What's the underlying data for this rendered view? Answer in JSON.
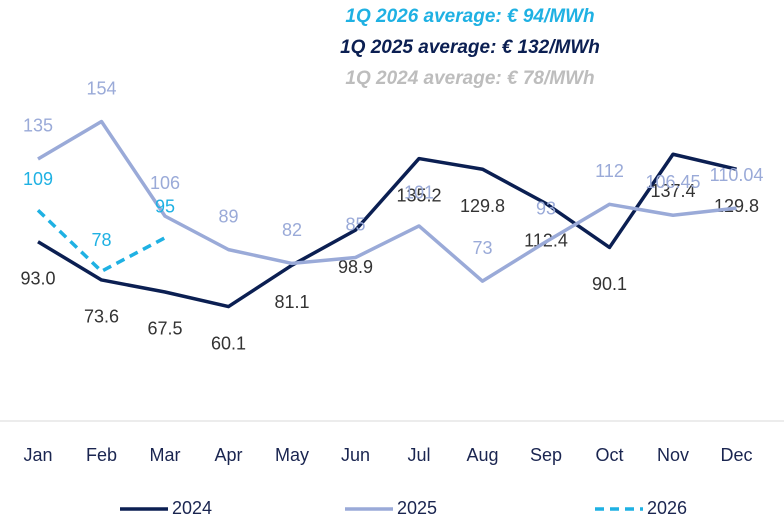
{
  "chart_data": {
    "type": "line",
    "annotations": [
      {
        "text": "1Q 2026 average: € 94/MWh",
        "color": "#1fb1e3"
      },
      {
        "text": "1Q 2025 average: € 132/MWh",
        "color": "#0b1f52"
      },
      {
        "text": "1Q 2024 average: € 78/MWh",
        "color": "#bdbdbd"
      }
    ],
    "categories": [
      "Jan",
      "Feb",
      "Mar",
      "Apr",
      "May",
      "Jun",
      "Jul",
      "Aug",
      "Sep",
      "Oct",
      "Nov",
      "Dec"
    ],
    "ylim": [
      0,
      170
    ],
    "series": [
      {
        "name": "2024",
        "color": "#0b1f52",
        "dashed": false,
        "values": [
          93.0,
          73.6,
          67.5,
          60.1,
          81.1,
          98.9,
          135.2,
          129.8,
          112.4,
          90.1,
          137.4,
          129.8
        ],
        "value_labels": [
          "93.0",
          "73.6",
          "67.5",
          "60.1",
          "81.1",
          "98.9",
          "135.2",
          "129.8",
          "112.4",
          "90.1",
          "137.4",
          "129.8"
        ]
      },
      {
        "name": "2025",
        "color": "#9aaad8",
        "dashed": false,
        "values": [
          135,
          154,
          106,
          89,
          82,
          85,
          101,
          73,
          93,
          112,
          106.45,
          110.04
        ]
      },
      {
        "name": "2026",
        "color": "#1fb1e3",
        "dashed": true,
        "values": [
          109,
          78,
          95,
          null,
          null,
          null,
          null,
          null,
          null,
          null,
          null,
          null
        ]
      }
    ]
  }
}
